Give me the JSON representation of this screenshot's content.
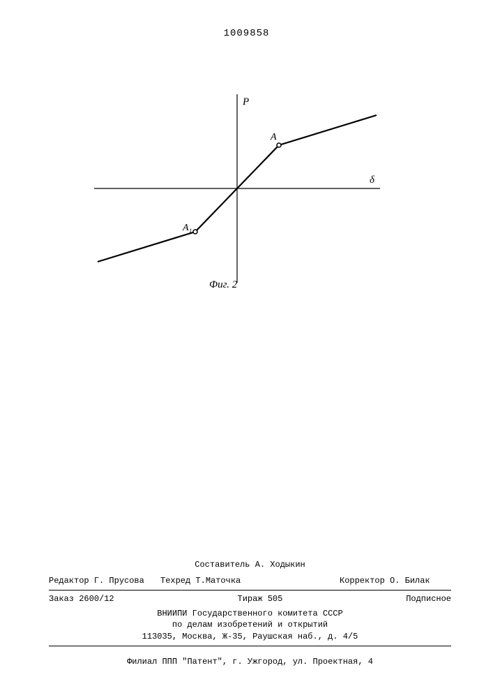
{
  "page_number": "1009858",
  "figure": {
    "caption": "Фиг. 2",
    "y_axis_label": "P",
    "x_axis_label": "δ",
    "point_A_upper": "A",
    "point_A_lower": "A₁",
    "colors": {
      "axis": "#000000",
      "curve": "#000000",
      "background": "#ffffff"
    },
    "axis": {
      "x_range": [
        -200,
        200
      ],
      "y_range": [
        -130,
        130
      ]
    },
    "curve_points": [
      {
        "x": -200,
        "y": -105
      },
      {
        "x": -60,
        "y": -62
      },
      {
        "x": 0,
        "y": 0
      },
      {
        "x": 60,
        "y": 62
      },
      {
        "x": 200,
        "y": 105
      }
    ],
    "marker_radius": 3,
    "line_width": 2.2
  },
  "footer": {
    "compiler_label": "Составитель",
    "compiler_name": "А. Ходыкин",
    "editor_label": "Редактор",
    "editor_name": "Г. Прусова",
    "techred_label": "Техред",
    "techred_name": "Т.Маточка",
    "corrector_label": "Корректор",
    "corrector_name": "О. Билак",
    "order_label": "Заказ",
    "order_no": "2600/12",
    "tirazh_label": "Тираж",
    "tirazh_no": "505",
    "subscription": "Подписное",
    "org_line1": "ВНИИПИ Государственного комитета СССР",
    "org_line2": "по делам изобретений и открытий",
    "address": "113035, Москва, Ж-35, Раушская наб., д. 4/5",
    "branch": "Филиал ППП \"Патент\", г. Ужгород, ул. Проектная, 4"
  }
}
